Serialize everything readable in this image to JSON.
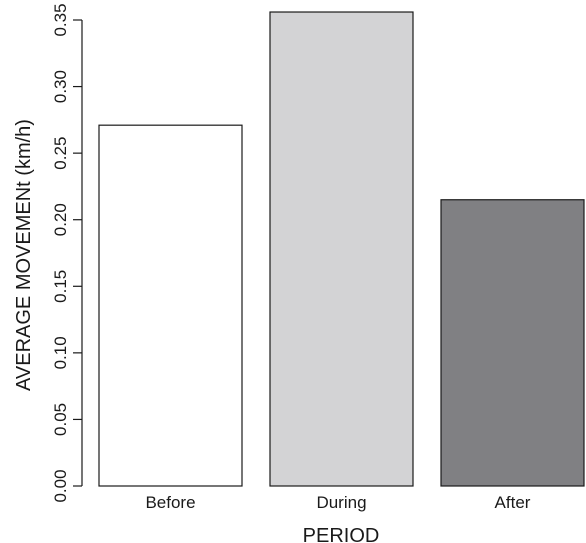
{
  "chart_data": {
    "type": "bar",
    "title": "",
    "xlabel": "PERIOD",
    "ylabel": "AVERAGE MOVEMENt (km/h)",
    "categories": [
      "Before",
      "During",
      "After"
    ],
    "values": [
      0.271,
      0.356,
      0.215
    ],
    "colors": [
      "#ffffff",
      "#d3d3d5",
      "#808083"
    ],
    "ylim": [
      0,
      0.35
    ],
    "yticks": [
      "0.00",
      "0.05",
      "0.10",
      "0.15",
      "0.20",
      "0.25",
      "0.30",
      "0.35"
    ],
    "grid": false,
    "legend": "none"
  }
}
